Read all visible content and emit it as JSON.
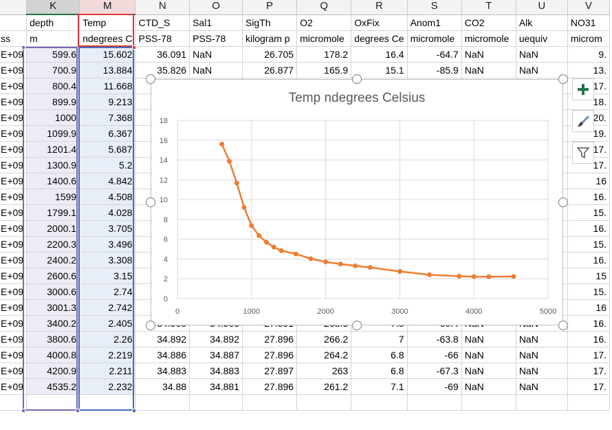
{
  "columns": [
    {
      "letter": "",
      "row1": "",
      "row2": "ss"
    },
    {
      "letter": "K",
      "row1": "depth",
      "row2": "m"
    },
    {
      "letter": "M",
      "row1": "Temp",
      "row2": "ndegrees C"
    },
    {
      "letter": "N",
      "row1": "CTD_S",
      "row2": "PSS-78"
    },
    {
      "letter": "O",
      "row1": "Sal1",
      "row2": "PSS-78"
    },
    {
      "letter": "P",
      "row1": "SigTh",
      "row2": "kilogram p"
    },
    {
      "letter": "Q",
      "row1": "O2",
      "row2": "micromole"
    },
    {
      "letter": "R",
      "row1": "OxFix",
      "row2": "degrees Ce"
    },
    {
      "letter": "S",
      "row1": "Anom1",
      "row2": "micromole"
    },
    {
      "letter": "T",
      "row1": "CO2",
      "row2": "micromole"
    },
    {
      "letter": "U",
      "row1": "Alk",
      "row2": "uequiv"
    },
    {
      "letter": "V",
      "row1": "NO31",
      "row2": "microm"
    }
  ],
  "rows": [
    [
      "E+09",
      "599.6",
      "15.602",
      "36.091",
      "NaN",
      "26.705",
      "178.2",
      "16.4",
      "-64.7",
      "NaN",
      "NaN",
      "9."
    ],
    [
      "E+09",
      "700.9",
      "13.884",
      "35.826",
      "NaN",
      "26.877",
      "165.9",
      "15.1",
      "-85.9",
      "NaN",
      "NaN",
      "13."
    ],
    [
      "E+09",
      "800.4",
      "11.668",
      "",
      "",
      "",
      "",
      "",
      "",
      "",
      "",
      "17."
    ],
    [
      "E+09",
      "899.9",
      "9.213",
      "",
      "",
      "",
      "",
      "",
      "",
      "",
      "",
      "18."
    ],
    [
      "E+09",
      "1000",
      "7.368",
      "",
      "",
      "",
      "",
      "",
      "",
      "",
      "",
      "20."
    ],
    [
      "E+09",
      "1099.9",
      "6.367",
      "",
      "",
      "",
      "",
      "",
      "",
      "",
      "",
      "19."
    ],
    [
      "E+09",
      "1201.4",
      "5.687",
      "",
      "",
      "",
      "",
      "",
      "",
      "",
      "",
      "17."
    ],
    [
      "E+09",
      "1300.9",
      "5.2",
      "",
      "",
      "",
      "",
      "",
      "",
      "",
      "",
      "17."
    ],
    [
      "E+09",
      "1400.6",
      "4.842",
      "",
      "",
      "",
      "",
      "",
      "",
      "",
      "",
      "16"
    ],
    [
      "E+09",
      "1599",
      "4.508",
      "",
      "",
      "",
      "",
      "",
      "",
      "",
      "",
      "16."
    ],
    [
      "E+09",
      "1799.1",
      "4.028",
      "",
      "",
      "",
      "",
      "",
      "",
      "",
      "",
      "15."
    ],
    [
      "E+09",
      "2000.1",
      "3.705",
      "",
      "",
      "",
      "",
      "",
      "",
      "",
      "",
      "16."
    ],
    [
      "E+09",
      "2200.3",
      "3.496",
      "",
      "",
      "",
      "",
      "",
      "",
      "",
      "",
      "15."
    ],
    [
      "E+09",
      "2400.2",
      "3.308",
      "",
      "",
      "",
      "",
      "",
      "",
      "",
      "",
      "16."
    ],
    [
      "E+09",
      "2600.6",
      "3.15",
      "",
      "",
      "",
      "",
      "",
      "",
      "",
      "",
      "15"
    ],
    [
      "E+09",
      "3000.6",
      "2.74",
      "",
      "",
      "",
      "",
      "",
      "",
      "",
      "",
      "15."
    ],
    [
      "E+09",
      "3001.3",
      "2.742",
      "",
      "",
      "",
      "",
      "",
      "",
      "",
      "",
      "16"
    ],
    [
      "E+09",
      "3400.2",
      "2.405",
      "34.905",
      "34.906",
      "27.891",
      "268.3",
      "7.8",
      "-60.4",
      "NaN",
      "NaN",
      "16."
    ],
    [
      "E+09",
      "3800.6",
      "2.26",
      "34.892",
      "34.892",
      "27.896",
      "266.2",
      "7",
      "-63.8",
      "NaN",
      "NaN",
      "16."
    ],
    [
      "E+09",
      "4000.8",
      "2.219",
      "34.886",
      "34.887",
      "27.896",
      "264.2",
      "6.8",
      "-66",
      "NaN",
      "NaN",
      "17."
    ],
    [
      "E+09",
      "4200.9",
      "2.211",
      "34.883",
      "34.883",
      "27.897",
      "263",
      "6.8",
      "-67.3",
      "NaN",
      "NaN",
      "17."
    ],
    [
      "E+09",
      "4535.2",
      "2.232",
      "34.88",
      "34.881",
      "27.896",
      "261.2",
      "7.1",
      "-69",
      "NaN",
      "NaN",
      "17."
    ],
    [
      "",
      "",
      "",
      "",
      "",
      "",
      "",
      "",
      "",
      "",
      "",
      ""
    ]
  ],
  "chart_data": {
    "type": "scatter",
    "title": "Temp ndegrees Celsius",
    "xlabel": "",
    "ylabel": "",
    "xlim": [
      0,
      5000
    ],
    "ylim": [
      0,
      18
    ],
    "xticks": [
      0,
      1000,
      2000,
      3000,
      4000,
      5000
    ],
    "yticks": [
      0,
      2,
      4,
      6,
      8,
      10,
      12,
      14,
      16,
      18
    ],
    "grid": true,
    "legend": "none",
    "line": true,
    "markers": true,
    "color": "#ed7d31",
    "series": [
      {
        "x": [
          599.6,
          700.9,
          800.4,
          899.9,
          1000,
          1099.9,
          1201.4,
          1300.9,
          1400.6,
          1599,
          1799.1,
          2000.1,
          2200.3,
          2400.2,
          2600.6,
          3000.6,
          3001.3,
          3400.2,
          3800.6,
          4000.8,
          4200.9,
          4535.2
        ],
        "y": [
          15.602,
          13.884,
          11.668,
          9.213,
          7.368,
          6.367,
          5.687,
          5.2,
          4.842,
          4.508,
          4.028,
          3.705,
          3.496,
          3.308,
          3.15,
          2.74,
          2.742,
          2.405,
          2.26,
          2.219,
          2.211,
          2.232
        ]
      }
    ]
  },
  "chart_tools": {
    "add_element_icon": "plus-icon",
    "style_icon": "brush-icon",
    "filter_icon": "funnel-icon",
    "accent": "#217346"
  }
}
